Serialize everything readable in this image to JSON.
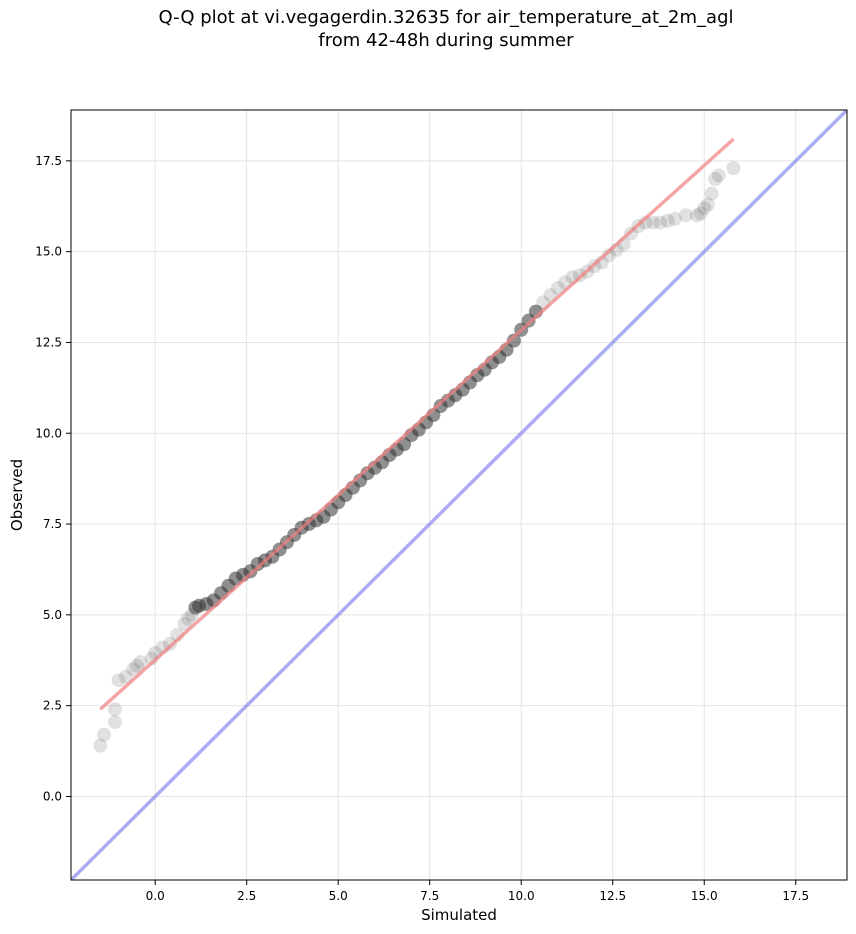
{
  "title_lines": [
    "Q-Q plot at vi.vegagerdin.32635 for air_temperature_at_2m_agl",
    "from 42-48h during summer"
  ],
  "chart_data": {
    "type": "scatter",
    "title": "Q-Q plot at vi.vegagerdin.32635 for air_temperature_at_2m_agl from 42-48h during summer",
    "xlabel": "Simulated",
    "ylabel": "Observed",
    "xlim": [
      -2.3,
      18.9
    ],
    "ylim": [
      -2.3,
      18.9
    ],
    "xticks": [
      "0.0",
      "2.5",
      "5.0",
      "7.5",
      "10.0",
      "12.5",
      "15.0",
      "17.5"
    ],
    "yticks": [
      "0.0",
      "2.5",
      "5.0",
      "7.5",
      "10.0",
      "12.5",
      "15.0",
      "17.5"
    ],
    "grid": true,
    "colors": {
      "points": "#333333",
      "fit_line": "#f08080",
      "identity_line": "#8080f0"
    },
    "fit_line": {
      "x": [
        -1.5,
        15.8
      ],
      "y": [
        2.4,
        18.1
      ]
    },
    "identity_line": {
      "x": [
        -2.3,
        18.9
      ],
      "y": [
        -2.3,
        18.9
      ]
    },
    "points": {
      "x": [
        -1.5,
        -1.4,
        -1.1,
        -1.1,
        -1.0,
        -0.8,
        -0.6,
        -0.5,
        -0.4,
        -0.1,
        0.0,
        0.2,
        0.4,
        0.6,
        0.8,
        0.9,
        1.0,
        1.1,
        1.2,
        1.4,
        1.6,
        1.8,
        2.0,
        2.2,
        2.4,
        2.6,
        2.8,
        3.0,
        3.2,
        3.4,
        3.6,
        3.8,
        4.0,
        4.2,
        4.4,
        4.6,
        4.8,
        5.0,
        5.2,
        5.4,
        5.6,
        5.8,
        6.0,
        6.2,
        6.4,
        6.6,
        6.8,
        7.0,
        7.2,
        7.4,
        7.6,
        7.8,
        8.0,
        8.2,
        8.4,
        8.6,
        8.8,
        9.0,
        9.2,
        9.4,
        9.6,
        9.8,
        10.0,
        10.2,
        10.4,
        10.6,
        10.8,
        11.0,
        11.2,
        11.4,
        11.6,
        11.8,
        12.0,
        12.2,
        12.4,
        12.6,
        12.8,
        13.0,
        13.2,
        13.4,
        13.6,
        13.8,
        14.0,
        14.2,
        14.5,
        14.8,
        14.9,
        15.0,
        15.1,
        15.2,
        15.3,
        15.4,
        15.8
      ],
      "y": [
        1.4,
        1.7,
        2.05,
        2.4,
        3.2,
        3.3,
        3.5,
        3.6,
        3.7,
        3.8,
        3.95,
        4.1,
        4.2,
        4.45,
        4.75,
        4.9,
        5.0,
        5.2,
        5.25,
        5.3,
        5.4,
        5.6,
        5.8,
        6.0,
        6.1,
        6.2,
        6.4,
        6.5,
        6.6,
        6.8,
        7.0,
        7.2,
        7.4,
        7.5,
        7.6,
        7.7,
        7.9,
        8.1,
        8.3,
        8.5,
        8.7,
        8.9,
        9.05,
        9.2,
        9.4,
        9.55,
        9.7,
        9.95,
        10.1,
        10.3,
        10.5,
        10.75,
        10.9,
        11.05,
        11.2,
        11.4,
        11.6,
        11.75,
        11.95,
        12.1,
        12.3,
        12.55,
        12.85,
        13.1,
        13.35,
        13.6,
        13.8,
        14.0,
        14.15,
        14.3,
        14.35,
        14.45,
        14.6,
        14.7,
        14.9,
        15.05,
        15.2,
        15.5,
        15.7,
        15.8,
        15.8,
        15.8,
        15.85,
        15.9,
        16.0,
        16.0,
        16.05,
        16.2,
        16.3,
        16.6,
        17.0,
        17.1,
        17.3
      ]
    }
  }
}
